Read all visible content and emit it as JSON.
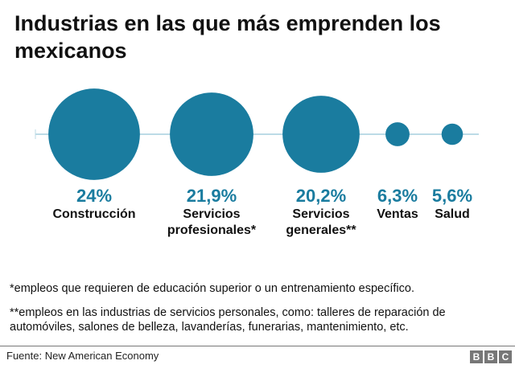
{
  "chart_data": {
    "type": "bubble",
    "title": "Industrias en las que más emprenden los mexicanos",
    "categories": [
      "Construcción",
      "Servicios profesionales*",
      "Servicios generales**",
      "Ventas",
      "Salud"
    ],
    "values": [
      24,
      21.9,
      20.2,
      6.3,
      5.6
    ],
    "value_labels": [
      "24%",
      "21,9%",
      "20,2%",
      "6,3%",
      "5,6%"
    ],
    "name_lines": [
      [
        "Construcción"
      ],
      [
        "Servicios",
        "profesionales*"
      ],
      [
        "Servicios",
        "generales**"
      ],
      [
        "Ventas"
      ],
      [
        "Salud"
      ]
    ],
    "colors": {
      "bubble": "#1a7c9f",
      "axis": "#bcdbe6",
      "label": "#1a7c9f"
    }
  },
  "notes": [
    "*empleos que requieren de educación superior o un entrenamiento específico.",
    "**empleos en las industrias de servicios personales, como: talleres de reparación de automóviles, salones de belleza, lavanderías, funerarias, mantenimiento, etc."
  ],
  "footer": {
    "source": "Fuente: New American Economy",
    "logo": "BBC"
  }
}
